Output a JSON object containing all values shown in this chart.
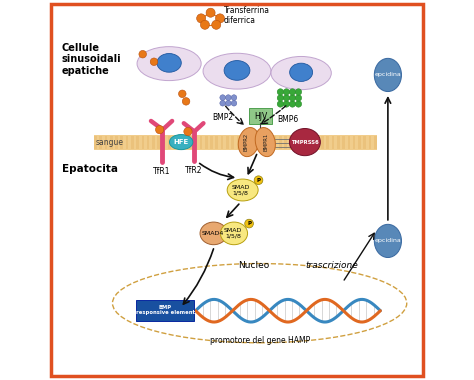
{
  "bg_color": "#ffffff",
  "border_color": "#e05020",
  "fig_bg": "#ffffff",
  "labels": {
    "cellule": "Cellule\nsinusoidali\nepatiche",
    "sangue": "sangue",
    "epatocita": "Epatocita",
    "transferrina": "Transferrina\ndiferrica",
    "bmp2": "BMP2",
    "bmp6": "BMP6",
    "hfe": "HFE",
    "tfr1": "TfR1",
    "tfr2": "TfR2",
    "tmprss6": "TMPRSS6",
    "hjv": "HJV",
    "nucleo": "Nucleo",
    "trascrizione": "trascrizione",
    "hamp": "promotore del gene HAMP",
    "epcidina_top": "epcidina",
    "epcidina_bot": "epcidina"
  },
  "colors": {
    "membrane": "#f0c880",
    "membrane_stripe": "#e0b060",
    "cell_body": "#e8d8ec",
    "cell_nucleus": "#4080cc",
    "orange_dots": "#e87818",
    "green_dots": "#38a838",
    "blue_dots": "#8090cc",
    "pink_receptor": "#e04878",
    "teal_hfe": "#38b0c0",
    "bmpr_body": "#e8a060",
    "tmprss6_color": "#a82840",
    "hjv_box": "#90c888",
    "smad_circle": "#f8e880",
    "smad4_shape": "#e8a870",
    "phospho": "#f0c010",
    "bmp_box": "#1850a0",
    "dna_blue": "#3888c0",
    "dna_orange": "#e06820",
    "epcidina_color": "#5888b8",
    "arrow_color": "#101010",
    "nucleus_dash": "#d0a040"
  }
}
